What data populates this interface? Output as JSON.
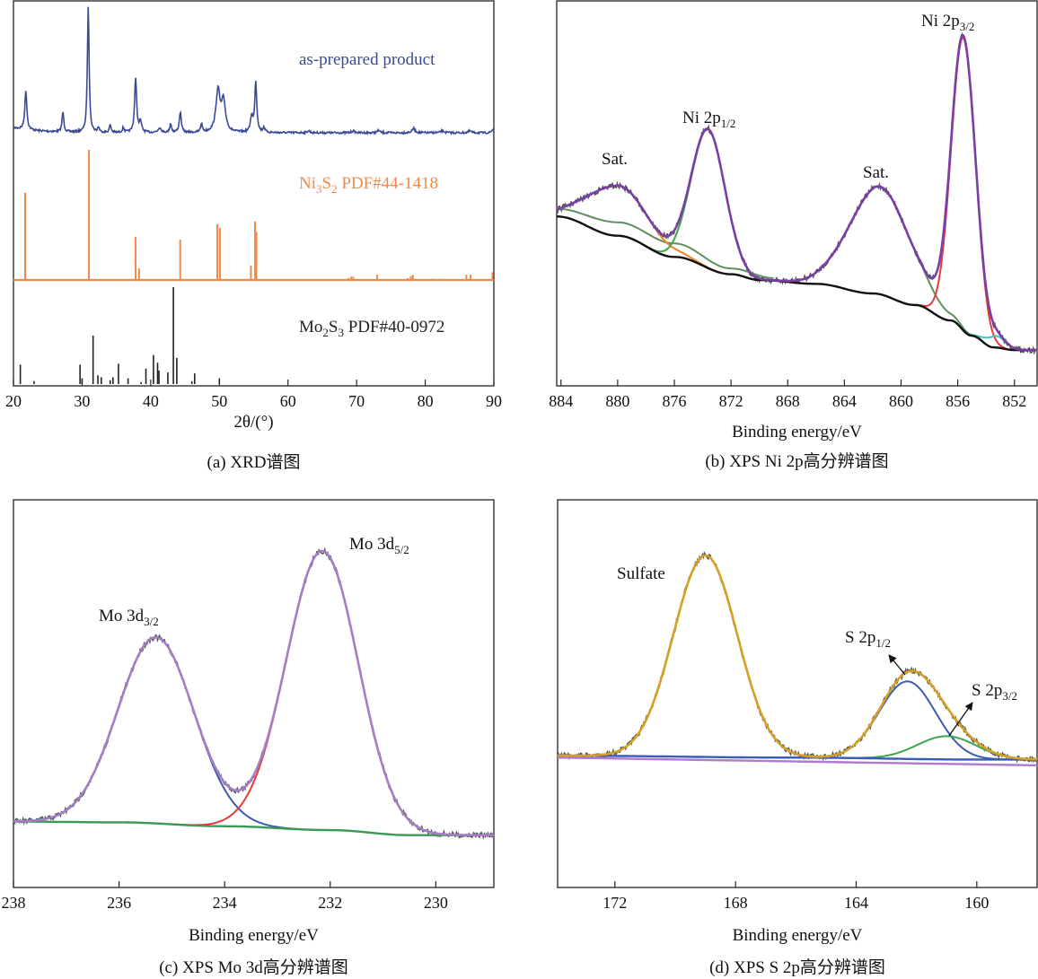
{
  "chart_data": [
    {
      "panel": "a",
      "type": "line",
      "caption": "(a) XRD谱图",
      "xlabel": "2θ/(°)",
      "xlim": [
        20,
        90
      ],
      "xticks": [
        20,
        30,
        40,
        50,
        60,
        70,
        80,
        90
      ],
      "ylabel": "",
      "colors": {
        "pattern": "#3b4a98",
        "ni3s2": "#f08a4b",
        "mo2s3": "#222222"
      },
      "series": [
        {
          "name": "as-prepared product",
          "kind": "pattern",
          "baseline": 0,
          "peaks": [
            {
              "x": 21.8,
              "y": 31,
              "w": 0.35
            },
            {
              "x": 27.2,
              "y": 16,
              "w": 0.3
            },
            {
              "x": 30.9,
              "y": 100,
              "w": 0.3
            },
            {
              "x": 32.4,
              "y": 4,
              "w": 0.3
            },
            {
              "x": 34.1,
              "y": 6,
              "w": 0.3
            },
            {
              "x": 36.0,
              "y": 4,
              "w": 0.3
            },
            {
              "x": 37.8,
              "y": 43,
              "w": 0.35
            },
            {
              "x": 38.5,
              "y": 8,
              "w": 0.4
            },
            {
              "x": 41.3,
              "y": 4,
              "w": 0.5
            },
            {
              "x": 42.9,
              "y": 7,
              "w": 0.3
            },
            {
              "x": 44.3,
              "y": 16,
              "w": 0.35
            },
            {
              "x": 47.4,
              "y": 7,
              "w": 0.3
            },
            {
              "x": 49.8,
              "y": 33,
              "w": 0.7
            },
            {
              "x": 50.6,
              "y": 24,
              "w": 0.7
            },
            {
              "x": 54.7,
              "y": 12,
              "w": 0.4
            },
            {
              "x": 55.3,
              "y": 40,
              "w": 0.35
            },
            {
              "x": 56.5,
              "y": 4,
              "w": 0.3
            },
            {
              "x": 63.0,
              "y": 1.5,
              "w": 0.5
            },
            {
              "x": 69.5,
              "y": 1.5,
              "w": 0.5
            },
            {
              "x": 73.2,
              "y": 2,
              "w": 0.4
            },
            {
              "x": 78.3,
              "y": 3.5,
              "w": 0.5
            },
            {
              "x": 82.5,
              "y": 1.5,
              "w": 0.6
            },
            {
              "x": 86.5,
              "y": 1.5,
              "w": 0.5
            },
            {
              "x": 89.9,
              "y": 3,
              "w": 0.4
            }
          ]
        },
        {
          "name": "Ni3S2 PDF#44-1418",
          "label_parts": [
            {
              "t": "Ni"
            },
            {
              "sub": "3"
            },
            {
              "t": "S"
            },
            {
              "sub": "2"
            },
            {
              "t": " PDF#44-1418"
            }
          ],
          "kind": "sticks",
          "x": [
            21.7,
            31.0,
            37.8,
            38.3,
            44.3,
            49.7,
            50.1,
            54.6,
            55.2,
            55.4,
            68.8,
            69.2,
            69.5,
            73.0,
            77.4,
            77.9,
            78.2,
            81.0,
            82.2,
            86.0,
            86.6,
            89.8
          ],
          "y": [
            67,
            100,
            33,
            9,
            31,
            43,
            40,
            11,
            45,
            37,
            1.5,
            2.5,
            2.5,
            4,
            1.5,
            3,
            4,
            1,
            1,
            4,
            4,
            6
          ]
        },
        {
          "name": "Mo2S3 PDF#40-0972",
          "label_parts": [
            {
              "t": "Mo"
            },
            {
              "sub": "2"
            },
            {
              "t": "S"
            },
            {
              "sub": "3"
            },
            {
              "t": " PDF#40-0972"
            }
          ],
          "kind": "sticks",
          "x": [
            21.0,
            23.0,
            29.7,
            30.0,
            31.6,
            32.3,
            32.8,
            34.1,
            34.5,
            35.3,
            36.7,
            38.6,
            39.3,
            40.4,
            41.0,
            41.2,
            42.5,
            43.3,
            43.8,
            46.0,
            46.4,
            50.0
          ],
          "y": [
            20,
            3,
            20,
            6,
            50,
            9,
            7,
            4,
            7,
            21,
            6,
            2,
            16,
            30,
            22,
            14,
            12,
            100,
            27,
            3,
            11,
            6
          ]
        }
      ]
    },
    {
      "panel": "b",
      "type": "line",
      "caption": "(b) XPS Ni 2p高分辨谱图",
      "xlabel": "Binding energy/eV",
      "xlim": [
        884.3,
        850.4
      ],
      "xticks": [
        884,
        880,
        876,
        872,
        868,
        864,
        860,
        856,
        852
      ],
      "ylim": [
        0,
        100
      ],
      "colors": {
        "raw": "#555555",
        "envelope": "#7a3fa6",
        "background": "#111111",
        "secondary_background": "#5e8f5e"
      },
      "background": [
        [
          884.3,
          44
        ],
        [
          880,
          39
        ],
        [
          876,
          33.5
        ],
        [
          872,
          29
        ],
        [
          870,
          27.5
        ],
        [
          866,
          26.5
        ],
        [
          862,
          24
        ],
        [
          859,
          21
        ],
        [
          856.5,
          17
        ],
        [
          855,
          13
        ],
        [
          853.5,
          10
        ],
        [
          852,
          9.3
        ],
        [
          850.4,
          9.3
        ]
      ],
      "secondary_background": [
        [
          884.3,
          46
        ],
        [
          880,
          42.5
        ],
        [
          876,
          37
        ],
        [
          872,
          30.5
        ],
        [
          869,
          28
        ]
      ],
      "components": [
        {
          "name": "Sat.",
          "center": 880.0,
          "height": 13,
          "fwhm": 5.0,
          "color": "#f07f22"
        },
        {
          "name": "Ni 2p1/2",
          "center": 873.6,
          "height": 36,
          "fwhm": 2.8,
          "color": "#3aa848"
        },
        {
          "name": "Sat.",
          "center": 861.5,
          "height": 28,
          "fwhm": 5.0,
          "color": "#5e8f5e"
        },
        {
          "name": "Ni 2p3/2",
          "center": 855.6,
          "height": 76,
          "fwhm": 2.0,
          "color": "#e63b3b"
        },
        {
          "name": "",
          "center": 853.3,
          "height": 3,
          "fwhm": 1.6,
          "color": "#3fc3c3"
        }
      ],
      "annotations": [
        {
          "parts": [
            {
              "t": "Sat."
            }
          ]
        },
        {
          "parts": [
            {
              "t": "Ni 2p"
            },
            {
              "sub": "1/2"
            }
          ]
        },
        {
          "parts": [
            {
              "t": "Sat."
            }
          ]
        },
        {
          "parts": [
            {
              "t": "Ni 2p"
            },
            {
              "sub": "3/2"
            }
          ]
        }
      ]
    },
    {
      "panel": "c",
      "type": "line",
      "caption": "(c) XPS Mo 3d高分辨谱图",
      "xlabel": "Binding energy/eV",
      "xlim": [
        238,
        228.9
      ],
      "xticks": [
        238,
        236,
        234,
        232,
        230
      ],
      "ylim": [
        0,
        100
      ],
      "colors": {
        "raw": "#555555",
        "envelope": "#a57ec6",
        "background": "#3a9a52"
      },
      "background": [
        [
          238,
          17
        ],
        [
          236,
          16.8
        ],
        [
          234,
          15.8
        ],
        [
          232,
          14.8
        ],
        [
          230.5,
          13.5
        ],
        [
          228.9,
          13.5
        ]
      ],
      "components": [
        {
          "name": "Mo 3d3/2",
          "center": 235.3,
          "height": 48,
          "fwhm": 1.7,
          "color": "#3b5bb5"
        },
        {
          "name": "Mo 3d5/2",
          "center": 232.15,
          "height": 72,
          "fwhm": 1.6,
          "color": "#e63b3b"
        }
      ],
      "annotations": [
        {
          "parts": [
            {
              "t": "Mo 3d"
            },
            {
              "sub": "3/2"
            }
          ]
        },
        {
          "parts": [
            {
              "t": "Mo 3d"
            },
            {
              "sub": "5/2"
            }
          ]
        }
      ]
    },
    {
      "panel": "d",
      "type": "line",
      "caption": "(d) XPS S 2p高分辨谱图",
      "xlabel": "Binding energy/eV",
      "xlim": [
        173.9,
        158.0
      ],
      "xticks": [
        172,
        168,
        164,
        160
      ],
      "ylim": [
        0,
        100
      ],
      "colors": {
        "raw": "#555555",
        "envelope": "#d4a026",
        "background": "#3b5bb5",
        "baseline2": "#b07ad0"
      },
      "background": [
        [
          173.9,
          34
        ],
        [
          166,
          33.5
        ],
        [
          160,
          33
        ],
        [
          158,
          33
        ]
      ],
      "baseline2": [
        [
          173.9,
          33.5
        ],
        [
          158,
          31.5
        ]
      ],
      "components": [
        {
          "name": "Sulfate",
          "center": 169.0,
          "height": 52,
          "fwhm": 2.5,
          "color": "#e63b3b"
        },
        {
          "name": "S 2p1/2",
          "center": 162.3,
          "height": 20,
          "fwhm": 2.2,
          "color": "#3b5bb5"
        },
        {
          "name": "S 2p3/2",
          "center": 161.0,
          "height": 6,
          "fwhm": 2.3,
          "color": "#3aa848"
        }
      ],
      "annotations": [
        {
          "parts": [
            {
              "t": "Sulfate"
            }
          ]
        },
        {
          "parts": [
            {
              "t": "S 2p"
            },
            {
              "sub": "1/2"
            }
          ]
        },
        {
          "parts": [
            {
              "t": "S 2p"
            },
            {
              "sub": "3/2"
            }
          ]
        }
      ]
    }
  ]
}
